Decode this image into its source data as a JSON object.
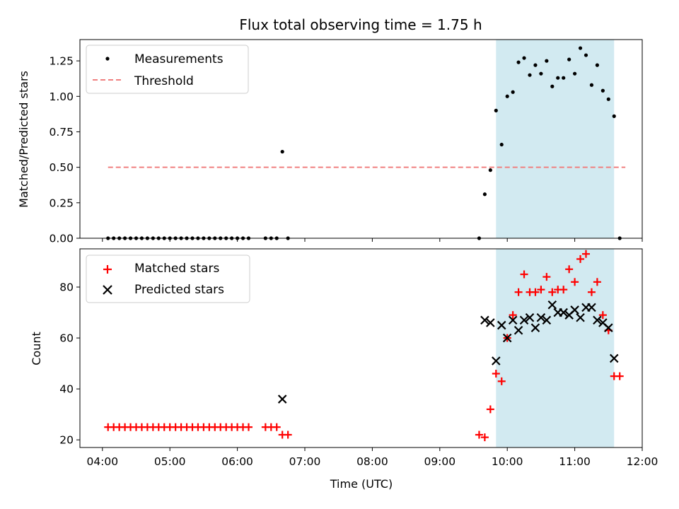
{
  "chart_data": [
    {
      "type": "scatter",
      "title": "Flux total observing time = 1.75 h",
      "ylabel": "Matched/Predicted stars",
      "xlabel": "",
      "xlim": [
        "03:40",
        "12:00"
      ],
      "ylim": [
        0,
        1.4
      ],
      "yticks": [
        "0.00",
        "0.25",
        "0.50",
        "0.75",
        "1.00",
        "1.25"
      ],
      "legend_position": "top-left",
      "shaded_interval": [
        "09:50",
        "11:35"
      ],
      "series": [
        {
          "name": "Measurements",
          "color": "#000000",
          "marker": "dot",
          "x": [
            "04:05",
            "04:10",
            "04:15",
            "04:20",
            "04:25",
            "04:30",
            "04:35",
            "04:40",
            "04:45",
            "04:50",
            "04:55",
            "05:00",
            "05:05",
            "05:10",
            "05:15",
            "05:20",
            "05:25",
            "05:30",
            "05:35",
            "05:40",
            "05:45",
            "05:50",
            "05:55",
            "06:00",
            "06:05",
            "06:10",
            "06:25",
            "06:30",
            "06:35",
            "06:40",
            "06:45",
            "09:35",
            "09:40",
            "09:45",
            "09:50",
            "09:55",
            "10:00",
            "10:05",
            "10:10",
            "10:15",
            "10:20",
            "10:25",
            "10:30",
            "10:35",
            "10:40",
            "10:45",
            "10:50",
            "10:55",
            "11:00",
            "11:05",
            "11:10",
            "11:15",
            "11:20",
            "11:25",
            "11:30",
            "11:35",
            "11:40"
          ],
          "y": [
            0,
            0,
            0,
            0,
            0,
            0,
            0,
            0,
            0,
            0,
            0,
            0,
            0,
            0,
            0,
            0,
            0,
            0,
            0,
            0,
            0,
            0,
            0,
            0,
            0,
            0,
            0,
            0,
            0,
            0.61,
            0,
            0,
            0.31,
            0.48,
            0.9,
            0.66,
            1.0,
            1.03,
            1.24,
            1.27,
            1.15,
            1.22,
            1.16,
            1.25,
            1.07,
            1.13,
            1.13,
            1.26,
            1.16,
            1.34,
            1.29,
            1.08,
            1.22,
            1.04,
            0.98,
            0.86,
            0
          ]
        },
        {
          "name": "Threshold",
          "color": "#f08080",
          "style": "dashed",
          "x": [
            "04:05",
            "11:45"
          ],
          "y": [
            0.5,
            0.5
          ]
        }
      ]
    },
    {
      "type": "scatter",
      "title": "",
      "ylabel": "Count",
      "xlabel": "Time (UTC)",
      "xlim": [
        "03:40",
        "12:00"
      ],
      "ylim": [
        17,
        95
      ],
      "yticks": [
        "20",
        "40",
        "60",
        "80"
      ],
      "xticks": [
        "04:00",
        "05:00",
        "06:00",
        "07:00",
        "08:00",
        "09:00",
        "10:00",
        "11:00",
        "12:00"
      ],
      "legend_position": "top-left",
      "shaded_interval": [
        "09:50",
        "11:35"
      ],
      "series": [
        {
          "name": "Matched stars",
          "color": "#ff0000",
          "marker": "plus",
          "x": [
            "04:05",
            "04:10",
            "04:15",
            "04:20",
            "04:25",
            "04:30",
            "04:35",
            "04:40",
            "04:45",
            "04:50",
            "04:55",
            "05:00",
            "05:05",
            "05:10",
            "05:15",
            "05:20",
            "05:25",
            "05:30",
            "05:35",
            "05:40",
            "05:45",
            "05:50",
            "05:55",
            "06:00",
            "06:05",
            "06:10",
            "06:25",
            "06:30",
            "06:35",
            "06:40",
            "06:45",
            "09:35",
            "09:40",
            "09:45",
            "09:50",
            "09:55",
            "10:00",
            "10:05",
            "10:10",
            "10:15",
            "10:20",
            "10:25",
            "10:30",
            "10:35",
            "10:40",
            "10:45",
            "10:50",
            "10:55",
            "11:00",
            "11:05",
            "11:10",
            "11:15",
            "11:20",
            "11:25",
            "11:30",
            "11:35",
            "11:40"
          ],
          "y": [
            25,
            25,
            25,
            25,
            25,
            25,
            25,
            25,
            25,
            25,
            25,
            25,
            25,
            25,
            25,
            25,
            25,
            25,
            25,
            25,
            25,
            25,
            25,
            25,
            25,
            25,
            25,
            25,
            25,
            22,
            22,
            22,
            21,
            32,
            46,
            43,
            60,
            69,
            78,
            85,
            78,
            78,
            79,
            84,
            78,
            79,
            79,
            87,
            82,
            91,
            93,
            78,
            82,
            69,
            63,
            45,
            45
          ]
        },
        {
          "name": "Predicted stars",
          "color": "#000000",
          "marker": "x",
          "x": [
            "06:40",
            "09:40",
            "09:45",
            "09:50",
            "09:55",
            "10:00",
            "10:05",
            "10:10",
            "10:15",
            "10:20",
            "10:25",
            "10:30",
            "10:35",
            "10:40",
            "10:45",
            "10:50",
            "10:55",
            "11:00",
            "11:05",
            "11:10",
            "11:15",
            "11:20",
            "11:25",
            "11:30",
            "11:35"
          ],
          "y": [
            36,
            67,
            66,
            51,
            65,
            60,
            67,
            63,
            67,
            68,
            64,
            68,
            67,
            73,
            70,
            70,
            69,
            71,
            68,
            72,
            72,
            67,
            66,
            64,
            52
          ]
        }
      ]
    }
  ]
}
